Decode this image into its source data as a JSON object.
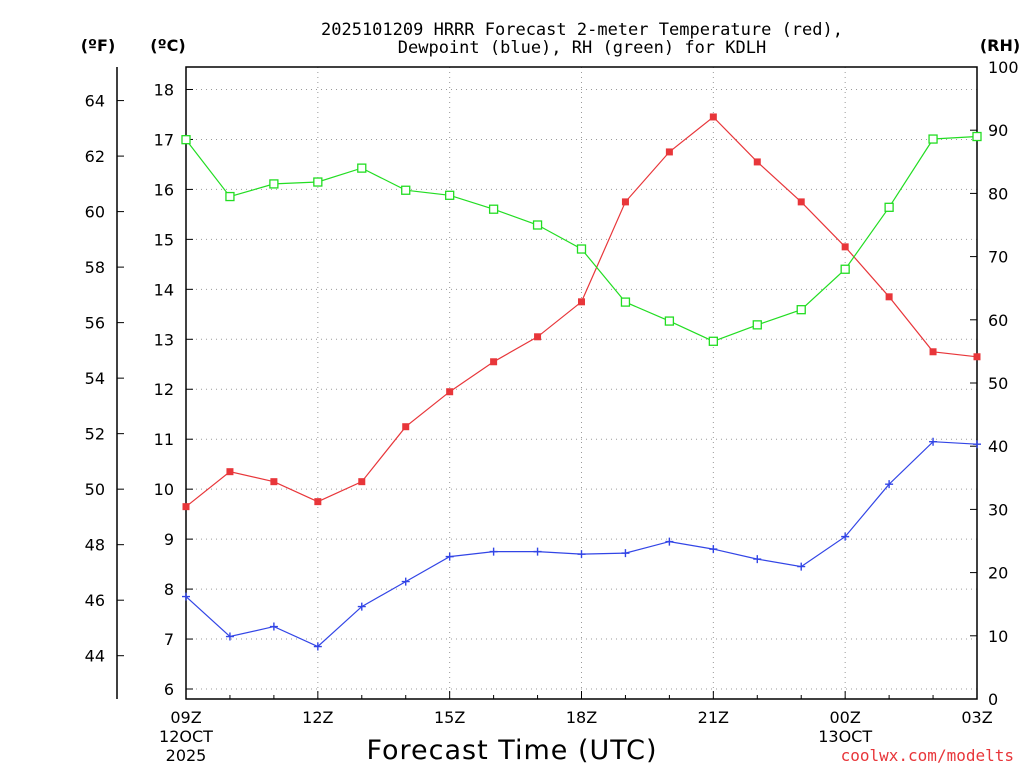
{
  "chart_data": {
    "type": "line",
    "title_lines": [
      "2025101209 HRRR Forecast 2-meter Temperature (red),",
      "Dewpoint (blue), RH (green) for KDLH"
    ],
    "xlabel": "Forecast Time (UTC)",
    "credit": "coolwx.com/modelts",
    "units": {
      "fahrenheit": "(ºF)",
      "celsius": "(ºC)",
      "rh": "(RH)"
    },
    "x_hours": [
      0,
      1,
      2,
      3,
      4,
      5,
      6,
      7,
      8,
      9,
      10,
      11,
      12,
      13,
      14,
      15,
      16,
      17,
      18
    ],
    "x_ticks": [
      {
        "hour": 0,
        "label": "09Z",
        "sub1": "12OCT",
        "sub2": "2025"
      },
      {
        "hour": 3,
        "label": "12Z",
        "sub1": "",
        "sub2": ""
      },
      {
        "hour": 6,
        "label": "15Z",
        "sub1": "",
        "sub2": ""
      },
      {
        "hour": 9,
        "label": "18Z",
        "sub1": "",
        "sub2": ""
      },
      {
        "hour": 12,
        "label": "21Z",
        "sub1": "",
        "sub2": ""
      },
      {
        "hour": 15,
        "label": "00Z",
        "sub1": "13OCT",
        "sub2": ""
      },
      {
        "hour": 18,
        "label": "03Z",
        "sub1": "",
        "sub2": ""
      }
    ],
    "ylim_celsius": [
      5.8,
      18.45
    ],
    "ylim_rh": [
      0,
      100
    ],
    "celsius_ticks": [
      6,
      7,
      8,
      9,
      10,
      11,
      12,
      13,
      14,
      15,
      16,
      17,
      18
    ],
    "fahrenheit_ticks": [
      44,
      46,
      48,
      50,
      52,
      54,
      56,
      58,
      60,
      62,
      64
    ],
    "rh_ticks": [
      0,
      10,
      20,
      30,
      40,
      50,
      60,
      70,
      80,
      90,
      100
    ],
    "series": [
      {
        "name": "Temperature",
        "axis": "celsius",
        "color": "#e8363a",
        "marker": "filled-square",
        "values": [
          9.65,
          10.35,
          10.15,
          9.75,
          10.15,
          11.25,
          11.95,
          12.55,
          13.05,
          13.75,
          15.75,
          16.75,
          17.45,
          16.55,
          15.75,
          14.85,
          13.85,
          12.75,
          12.65
        ]
      },
      {
        "name": "Dewpoint",
        "axis": "celsius",
        "color": "#3245e6",
        "marker": "plus",
        "values": [
          7.85,
          7.05,
          7.25,
          6.85,
          7.65,
          8.15,
          8.65,
          8.75,
          8.75,
          8.7,
          8.72,
          8.95,
          8.8,
          8.6,
          8.45,
          9.05,
          10.1,
          10.95,
          10.9
        ]
      },
      {
        "name": "RH",
        "axis": "rh",
        "color": "#22dd22",
        "marker": "open-square",
        "values": [
          88.5,
          79.5,
          81.5,
          81.8,
          84.0,
          80.5,
          79.7,
          77.5,
          75.0,
          71.2,
          62.8,
          59.8,
          56.6,
          59.2,
          61.6,
          68.0,
          77.8,
          88.6,
          89.0
        ]
      }
    ]
  }
}
